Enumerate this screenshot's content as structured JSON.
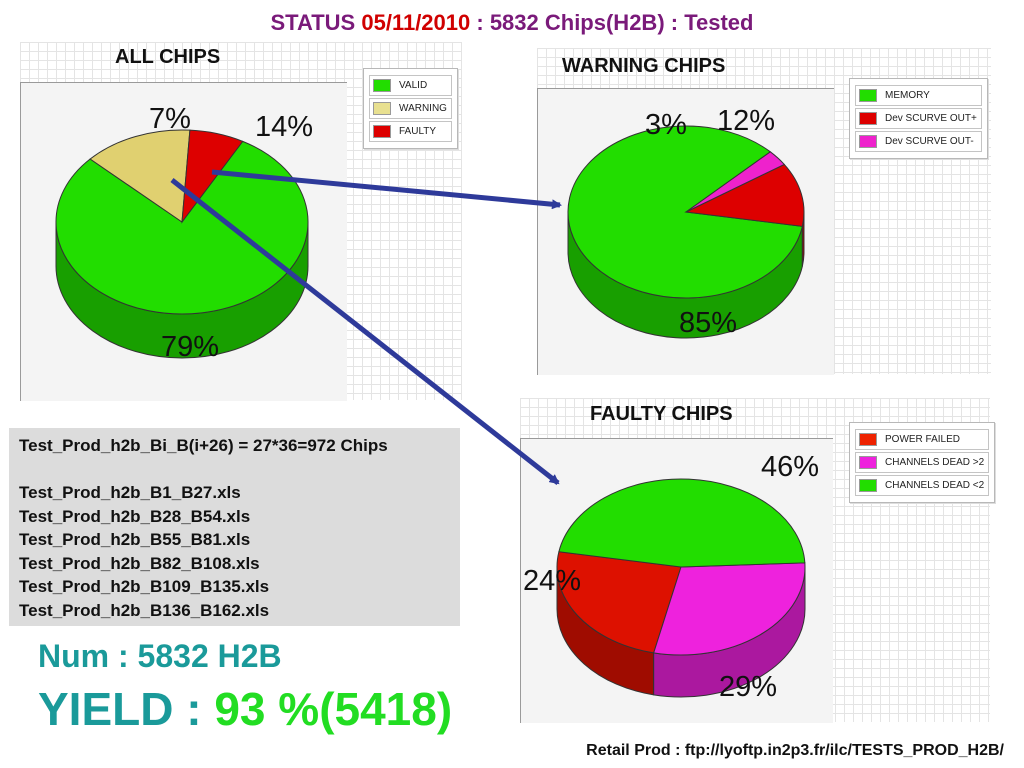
{
  "header": {
    "prefix": "STATUS ",
    "date": "05/11/2010",
    "suffix": " : 5832 Chips(H2B) : Tested"
  },
  "chart_data": [
    {
      "type": "pie",
      "title": "ALL CHIPS",
      "legend_position": "top-right",
      "slices": [
        {
          "name": "VALID",
          "value": 79,
          "label": "79%",
          "color": "#22dd00"
        },
        {
          "name": "WARNING",
          "value": 14,
          "label": "14%",
          "color": "#e0d070"
        },
        {
          "name": "FAULTY",
          "value": 7,
          "label": "7%",
          "color": "#dd0000"
        }
      ]
    },
    {
      "type": "pie",
      "title": "WARNING CHIPS",
      "legend_position": "top-right",
      "slices": [
        {
          "name": "MEMORY",
          "value": 85,
          "label": "85%",
          "color": "#22dd00"
        },
        {
          "name": "Dev SCURVE OUT+",
          "value": 12,
          "label": "12%",
          "color": "#dd0000"
        },
        {
          "name": "Dev SCURVE OUT-",
          "value": 3,
          "label": "3%",
          "color": "#ee22cc"
        }
      ]
    },
    {
      "type": "pie",
      "title": "FAULTY CHIPS",
      "legend_position": "top-right",
      "slices": [
        {
          "name": "POWER FAILED",
          "value": 24,
          "label": "24%",
          "color": "#dd1100"
        },
        {
          "name": "CHANNELS DEAD >2",
          "value": 29,
          "label": "29%",
          "color": "#ee22dd"
        },
        {
          "name": "CHANNELS DEAD <2",
          "value": 46,
          "label": "46%",
          "color": "#22dd00"
        }
      ]
    }
  ],
  "info": {
    "summary": "Test_Prod_h2b_Bi_B(i+26) = 27*36=972 Chips",
    "files": [
      "Test_Prod_h2b_B1_B27.xls",
      "Test_Prod_h2b_B28_B54.xls",
      "Test_Prod_h2b_B55_B81.xls",
      "Test_Prod_h2b_B82_B108.xls",
      "Test_Prod_h2b_B109_B135.xls",
      "Test_Prod_h2b_B136_B162.xls"
    ]
  },
  "totals": {
    "num": "Num : 5832 H2B",
    "yield_label": "YIELD : ",
    "yield_value": "93 %(5418)"
  },
  "footer": {
    "text": "Retail Prod : ftp://lyoftp.in2p3.fr/ilc/TESTS_PROD_H2B/"
  },
  "colors": {
    "arrow": "#2e3a9a"
  }
}
